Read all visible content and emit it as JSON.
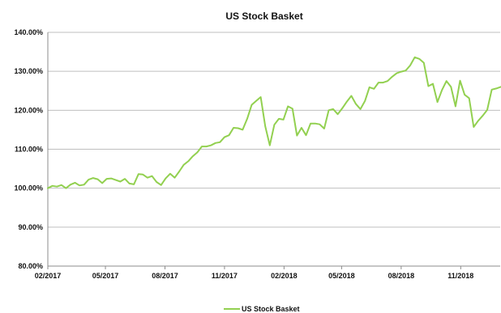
{
  "chart_data": {
    "type": "line",
    "title": "US Stock Basket",
    "xlabel": "",
    "ylabel": "",
    "ylim": [
      80,
      140
    ],
    "y_ticks": [
      80,
      90,
      100,
      110,
      120,
      130,
      140
    ],
    "y_tick_labels": [
      "80.00%",
      "90.00%",
      "100.00%",
      "110.00%",
      "120.00%",
      "130.00%",
      "140.00%"
    ],
    "x_tick_labels": [
      "02/2017",
      "05/2017",
      "08/2017",
      "11/2017",
      "02/2018",
      "05/2018",
      "08/2018",
      "11/2018"
    ],
    "x_range_months": [
      "2017-02",
      "2019-01"
    ],
    "grid": true,
    "legend_position": "bottom-center",
    "series": [
      {
        "name": "US Stock Basket",
        "color": "#92d050",
        "x": [
          "2017-02-01",
          "2017-02-08",
          "2017-02-15",
          "2017-02-22",
          "2017-03-01",
          "2017-03-08",
          "2017-03-15",
          "2017-03-22",
          "2017-03-29",
          "2017-04-05",
          "2017-04-12",
          "2017-04-19",
          "2017-04-26",
          "2017-05-03",
          "2017-05-10",
          "2017-05-17",
          "2017-05-24",
          "2017-05-31",
          "2017-06-07",
          "2017-06-14",
          "2017-06-21",
          "2017-06-28",
          "2017-07-05",
          "2017-07-12",
          "2017-07-19",
          "2017-07-26",
          "2017-08-02",
          "2017-08-09",
          "2017-08-16",
          "2017-08-23",
          "2017-08-30",
          "2017-09-06",
          "2017-09-13",
          "2017-09-20",
          "2017-09-27",
          "2017-10-04",
          "2017-10-11",
          "2017-10-18",
          "2017-10-25",
          "2017-11-01",
          "2017-11-08",
          "2017-11-15",
          "2017-11-22",
          "2017-11-29",
          "2017-12-06",
          "2017-12-13",
          "2017-12-20",
          "2017-12-27",
          "2018-01-03",
          "2018-01-10",
          "2018-01-17",
          "2018-01-24",
          "2018-01-31",
          "2018-02-07",
          "2018-02-14",
          "2018-02-21",
          "2018-02-28",
          "2018-03-07",
          "2018-03-14",
          "2018-03-21",
          "2018-03-28",
          "2018-04-04",
          "2018-04-11",
          "2018-04-18",
          "2018-04-25",
          "2018-05-02",
          "2018-05-09",
          "2018-05-16",
          "2018-05-23",
          "2018-05-30",
          "2018-06-06",
          "2018-06-13",
          "2018-06-20",
          "2018-06-27",
          "2018-07-04",
          "2018-07-11",
          "2018-07-18",
          "2018-07-25",
          "2018-08-01",
          "2018-08-08",
          "2018-08-15",
          "2018-08-22",
          "2018-08-29",
          "2018-09-05",
          "2018-09-12",
          "2018-09-19",
          "2018-09-26",
          "2018-10-03",
          "2018-10-10",
          "2018-10-17",
          "2018-10-24",
          "2018-10-31",
          "2018-11-07",
          "2018-11-14",
          "2018-11-21",
          "2018-11-28",
          "2018-12-05",
          "2018-12-12",
          "2018-12-19",
          "2018-12-26",
          "2019-01-02"
        ],
        "values": [
          100.0,
          100.6,
          100.4,
          100.8,
          100.0,
          100.9,
          101.4,
          100.7,
          100.9,
          102.2,
          102.6,
          102.3,
          101.3,
          102.4,
          102.5,
          102.1,
          101.7,
          102.4,
          101.2,
          101.0,
          103.6,
          103.5,
          102.7,
          103.1,
          101.6,
          100.8,
          102.5,
          103.7,
          102.7,
          104.3,
          106.0,
          106.9,
          108.2,
          109.2,
          110.7,
          110.7,
          111.0,
          111.6,
          111.8,
          113.1,
          113.6,
          115.5,
          115.4,
          115.0,
          117.8,
          121.4,
          122.4,
          123.4,
          115.9,
          111.0,
          116.3,
          117.8,
          117.6,
          121.0,
          120.4,
          113.5,
          115.5,
          113.6,
          116.6,
          116.6,
          116.4,
          115.3,
          120.0,
          120.3,
          119.0,
          120.5,
          122.2,
          123.7,
          121.6,
          120.3,
          122.4,
          125.9,
          125.5,
          127.1,
          127.1,
          127.5,
          128.6,
          129.5,
          129.9,
          130.2,
          131.5,
          133.6,
          133.2,
          132.2,
          126.2,
          126.8,
          122.1,
          125.2,
          127.5,
          126.0,
          121.0,
          127.6,
          124.0,
          123.1,
          115.7,
          117.3,
          118.6,
          120.1,
          125.3,
          125.6,
          126.0
        ]
      }
    ]
  }
}
